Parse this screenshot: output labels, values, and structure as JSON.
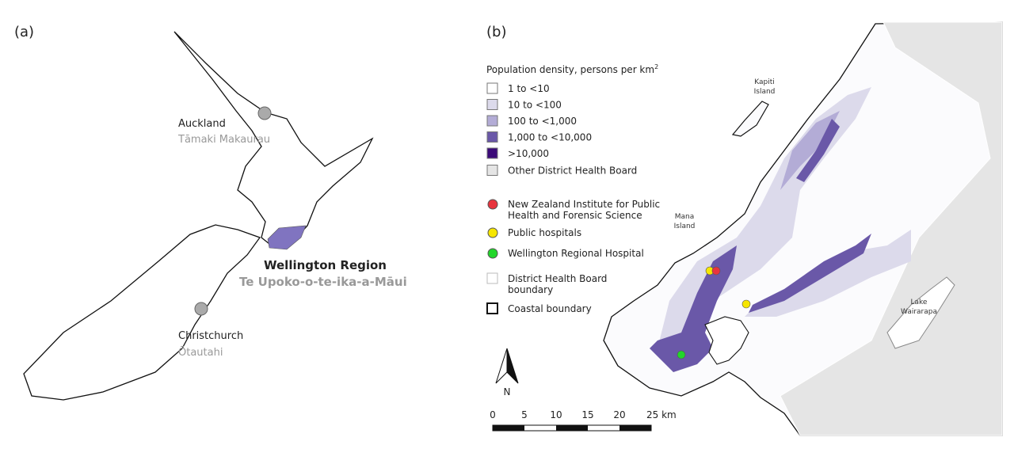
{
  "panel_a": {
    "label": "(a)",
    "places": [
      {
        "name": "Auckland",
        "maori_name": "Tāmaki Makaurau"
      },
      {
        "name": "Wellington Region",
        "maori_name": "Te Upoko-o-te-ika-a-Māui"
      },
      {
        "name": "Christchurch",
        "maori_name": "Ōtautahi"
      }
    ]
  },
  "panel_b": {
    "label": "(b)",
    "legend_title": {
      "text": "Population density, persons per km",
      "superscript": "2"
    },
    "density_classes": [
      "1 to <10",
      "10 to <100",
      "100 to <1,000",
      "1,000 to <10,000",
      ">10,000"
    ],
    "other_dhb": "Other District Health Board",
    "points": [
      {
        "lines": [
          "New Zealand Institute for Public",
          "Health and Forensic Science"
        ]
      },
      {
        "lines": [
          "Public hospitals"
        ]
      },
      {
        "lines": [
          "Wellington Regional Hospital"
        ]
      }
    ],
    "boundaries": [
      {
        "lines": [
          "District Health Board",
          "boundary"
        ]
      },
      {
        "lines": [
          "Coastal boundary"
        ]
      }
    ],
    "map_labels": [
      [
        "Kapiti",
        "Island"
      ],
      [
        "Mana",
        "Island"
      ],
      [
        "Lake",
        "Wairarapa"
      ]
    ],
    "north": "N",
    "scale_labels": [
      "0",
      "5",
      "10",
      "15",
      "20",
      "25 km"
    ]
  }
}
